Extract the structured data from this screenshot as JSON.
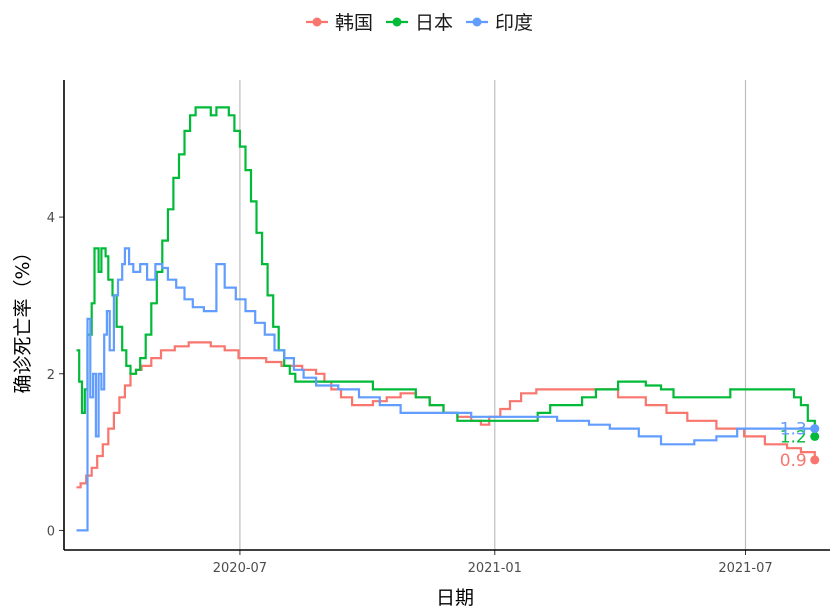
{
  "colors": {
    "韩国": "#F8766D",
    "日本": "#00BA38",
    "印度": "#619CFF"
  },
  "chart_data": {
    "type": "line",
    "title": "",
    "xlabel": "日期",
    "ylabel": "确诊死亡率（%）",
    "x_ticks": [
      "2020-07",
      "2021-01",
      "2021-07"
    ],
    "y_ticks": [
      "0",
      "2",
      "4"
    ],
    "xlim": [
      "2020-02-25",
      "2021-08-31"
    ],
    "ylim": [
      -0.25,
      5.75
    ],
    "grid": "vertical-major",
    "legend": "top-center",
    "end_labels": [
      {
        "series": "韩国",
        "text": "0.9"
      },
      {
        "series": "日本",
        "text": "1.2"
      },
      {
        "series": "印度",
        "text": "1.3"
      }
    ],
    "series": [
      {
        "name": "韩国",
        "points": [
          [
            "2020-03-05",
            0.55
          ],
          [
            "2020-03-08",
            0.6
          ],
          [
            "2020-03-12",
            0.7
          ],
          [
            "2020-03-16",
            0.8
          ],
          [
            "2020-03-20",
            0.95
          ],
          [
            "2020-03-24",
            1.1
          ],
          [
            "2020-03-28",
            1.3
          ],
          [
            "2020-04-01",
            1.5
          ],
          [
            "2020-04-05",
            1.7
          ],
          [
            "2020-04-09",
            1.85
          ],
          [
            "2020-04-13",
            2.0
          ],
          [
            "2020-04-17",
            2.05
          ],
          [
            "2020-04-21",
            2.1
          ],
          [
            "2020-04-28",
            2.2
          ],
          [
            "2020-05-05",
            2.3
          ],
          [
            "2020-05-15",
            2.35
          ],
          [
            "2020-05-25",
            2.4
          ],
          [
            "2020-06-10",
            2.35
          ],
          [
            "2020-06-20",
            2.3
          ],
          [
            "2020-06-30",
            2.2
          ],
          [
            "2020-07-20",
            2.15
          ],
          [
            "2020-07-31",
            2.1
          ],
          [
            "2020-08-15",
            2.05
          ],
          [
            "2020-08-25",
            2.0
          ],
          [
            "2020-08-31",
            1.9
          ],
          [
            "2020-09-05",
            1.8
          ],
          [
            "2020-09-12",
            1.7
          ],
          [
            "2020-09-20",
            1.6
          ],
          [
            "2020-10-05",
            1.65
          ],
          [
            "2020-10-15",
            1.7
          ],
          [
            "2020-10-25",
            1.75
          ],
          [
            "2020-11-05",
            1.7
          ],
          [
            "2020-11-15",
            1.6
          ],
          [
            "2020-11-25",
            1.5
          ],
          [
            "2020-12-05",
            1.45
          ],
          [
            "2020-12-15",
            1.4
          ],
          [
            "2020-12-22",
            1.35
          ],
          [
            "2020-12-28",
            1.45
          ],
          [
            "2021-01-05",
            1.55
          ],
          [
            "2021-01-12",
            1.65
          ],
          [
            "2021-01-20",
            1.75
          ],
          [
            "2021-01-31",
            1.8
          ],
          [
            "2021-03-20",
            1.8
          ],
          [
            "2021-03-31",
            1.7
          ],
          [
            "2021-04-20",
            1.6
          ],
          [
            "2021-05-05",
            1.5
          ],
          [
            "2021-05-20",
            1.4
          ],
          [
            "2021-06-10",
            1.3
          ],
          [
            "2021-06-30",
            1.2
          ],
          [
            "2021-07-15",
            1.1
          ],
          [
            "2021-07-31",
            1.05
          ],
          [
            "2021-08-10",
            1.0
          ],
          [
            "2021-08-20",
            0.9
          ]
        ]
      },
      {
        "name": "日本",
        "points": [
          [
            "2020-03-05",
            2.3
          ],
          [
            "2020-03-07",
            1.9
          ],
          [
            "2020-03-09",
            1.5
          ],
          [
            "2020-03-11",
            1.8
          ],
          [
            "2020-03-13",
            2.5
          ],
          [
            "2020-03-16",
            2.9
          ],
          [
            "2020-03-18",
            3.6
          ],
          [
            "2020-03-21",
            3.3
          ],
          [
            "2020-03-23",
            3.6
          ],
          [
            "2020-03-26",
            3.5
          ],
          [
            "2020-03-28",
            3.2
          ],
          [
            "2020-03-31",
            3.0
          ],
          [
            "2020-04-03",
            2.6
          ],
          [
            "2020-04-07",
            2.3
          ],
          [
            "2020-04-10",
            2.1
          ],
          [
            "2020-04-13",
            2.0
          ],
          [
            "2020-04-17",
            2.05
          ],
          [
            "2020-04-20",
            2.2
          ],
          [
            "2020-04-24",
            2.5
          ],
          [
            "2020-04-28",
            2.9
          ],
          [
            "2020-05-02",
            3.3
          ],
          [
            "2020-05-06",
            3.7
          ],
          [
            "2020-05-10",
            4.1
          ],
          [
            "2020-05-14",
            4.5
          ],
          [
            "2020-05-18",
            4.8
          ],
          [
            "2020-05-22",
            5.1
          ],
          [
            "2020-05-26",
            5.3
          ],
          [
            "2020-05-30",
            5.4
          ],
          [
            "2020-06-08",
            5.4
          ],
          [
            "2020-06-10",
            5.3
          ],
          [
            "2020-06-14",
            5.4
          ],
          [
            "2020-06-19",
            5.4
          ],
          [
            "2020-06-23",
            5.3
          ],
          [
            "2020-06-27",
            5.1
          ],
          [
            "2020-07-01",
            4.9
          ],
          [
            "2020-07-05",
            4.6
          ],
          [
            "2020-07-09",
            4.2
          ],
          [
            "2020-07-13",
            3.8
          ],
          [
            "2020-07-17",
            3.4
          ],
          [
            "2020-07-21",
            3.0
          ],
          [
            "2020-07-25",
            2.6
          ],
          [
            "2020-07-29",
            2.3
          ],
          [
            "2020-08-02",
            2.1
          ],
          [
            "2020-08-06",
            2.0
          ],
          [
            "2020-08-10",
            1.9
          ],
          [
            "2020-09-10",
            1.9
          ],
          [
            "2020-09-30",
            1.9
          ],
          [
            "2020-10-05",
            1.8
          ],
          [
            "2020-10-25",
            1.8
          ],
          [
            "2020-11-05",
            1.7
          ],
          [
            "2020-11-15",
            1.6
          ],
          [
            "2020-11-25",
            1.5
          ],
          [
            "2020-12-05",
            1.4
          ],
          [
            "2020-12-20",
            1.4
          ],
          [
            "2021-01-10",
            1.4
          ],
          [
            "2021-01-25",
            1.4
          ],
          [
            "2021-02-01",
            1.5
          ],
          [
            "2021-02-10",
            1.6
          ],
          [
            "2021-02-25",
            1.6
          ],
          [
            "2021-03-05",
            1.7
          ],
          [
            "2021-03-15",
            1.8
          ],
          [
            "2021-03-31",
            1.9
          ],
          [
            "2021-04-20",
            1.85
          ],
          [
            "2021-05-01",
            1.8
          ],
          [
            "2021-05-10",
            1.7
          ],
          [
            "2021-06-10",
            1.7
          ],
          [
            "2021-06-20",
            1.8
          ],
          [
            "2021-07-10",
            1.8
          ],
          [
            "2021-07-31",
            1.8
          ],
          [
            "2021-08-05",
            1.7
          ],
          [
            "2021-08-10",
            1.6
          ],
          [
            "2021-08-15",
            1.4
          ],
          [
            "2021-08-20",
            1.2
          ]
        ]
      },
      {
        "name": "印度",
        "points": [
          [
            "2020-03-05",
            0.0
          ],
          [
            "2020-03-12",
            0.0
          ],
          [
            "2020-03-13",
            2.7
          ],
          [
            "2020-03-15",
            1.7
          ],
          [
            "2020-03-17",
            2.0
          ],
          [
            "2020-03-19",
            1.2
          ],
          [
            "2020-03-21",
            2.0
          ],
          [
            "2020-03-23",
            1.8
          ],
          [
            "2020-03-25",
            2.5
          ],
          [
            "2020-03-27",
            2.8
          ],
          [
            "2020-03-29",
            2.3
          ],
          [
            "2020-04-01",
            3.0
          ],
          [
            "2020-04-04",
            3.2
          ],
          [
            "2020-04-07",
            3.4
          ],
          [
            "2020-04-09",
            3.6
          ],
          [
            "2020-04-12",
            3.4
          ],
          [
            "2020-04-15",
            3.3
          ],
          [
            "2020-04-20",
            3.4
          ],
          [
            "2020-04-25",
            3.2
          ],
          [
            "2020-05-01",
            3.4
          ],
          [
            "2020-05-06",
            3.35
          ],
          [
            "2020-05-10",
            3.2
          ],
          [
            "2020-05-16",
            3.1
          ],
          [
            "2020-05-22",
            2.95
          ],
          [
            "2020-05-28",
            2.85
          ],
          [
            "2020-06-05",
            2.8
          ],
          [
            "2020-06-12",
            2.8
          ],
          [
            "2020-06-14",
            3.4
          ],
          [
            "2020-06-20",
            3.1
          ],
          [
            "2020-06-28",
            2.95
          ],
          [
            "2020-07-05",
            2.8
          ],
          [
            "2020-07-12",
            2.65
          ],
          [
            "2020-07-19",
            2.5
          ],
          [
            "2020-07-26",
            2.3
          ],
          [
            "2020-08-02",
            2.2
          ],
          [
            "2020-08-09",
            2.05
          ],
          [
            "2020-08-16",
            1.95
          ],
          [
            "2020-08-25",
            1.85
          ],
          [
            "2020-09-10",
            1.8
          ],
          [
            "2020-09-25",
            1.7
          ],
          [
            "2020-10-10",
            1.6
          ],
          [
            "2020-10-25",
            1.5
          ],
          [
            "2020-11-20",
            1.5
          ],
          [
            "2020-12-15",
            1.45
          ],
          [
            "2021-01-15",
            1.45
          ],
          [
            "2021-02-15",
            1.4
          ],
          [
            "2021-03-10",
            1.35
          ],
          [
            "2021-03-25",
            1.3
          ],
          [
            "2021-04-15",
            1.2
          ],
          [
            "2021-05-01",
            1.1
          ],
          [
            "2021-05-25",
            1.15
          ],
          [
            "2021-06-10",
            1.2
          ],
          [
            "2021-06-25",
            1.3
          ],
          [
            "2021-07-31",
            1.3
          ],
          [
            "2021-08-20",
            1.3
          ]
        ]
      }
    ]
  }
}
